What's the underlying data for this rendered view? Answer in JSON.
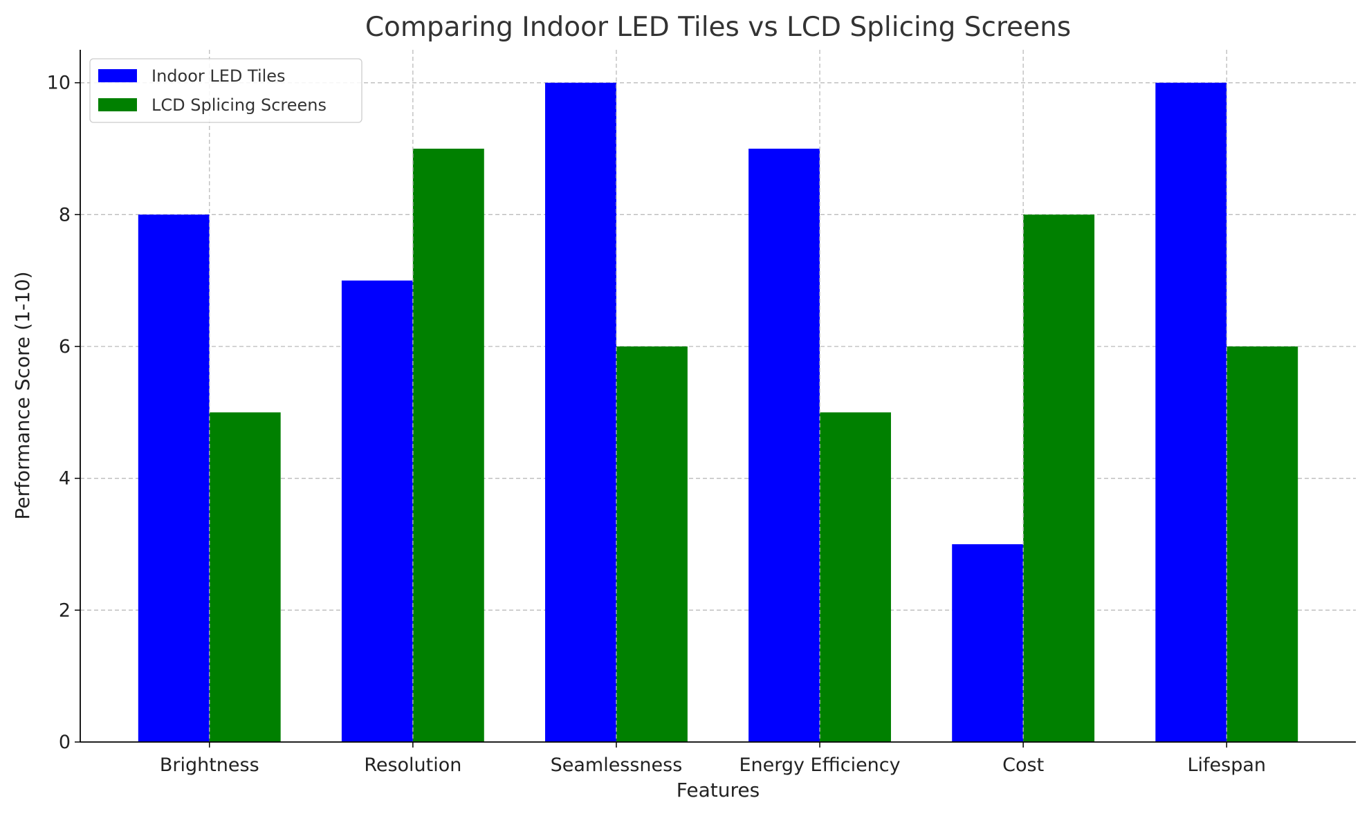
{
  "chart_data": {
    "type": "bar",
    "title": "Comparing Indoor LED Tiles vs LCD Splicing Screens",
    "xlabel": "Features",
    "ylabel": "Performance Score (1-10)",
    "categories": [
      "Brightness",
      "Resolution",
      "Seamlessness",
      "Energy Efficiency",
      "Cost",
      "Lifespan"
    ],
    "series": [
      {
        "name": "Indoor LED Tiles",
        "values": [
          8,
          7,
          10,
          9,
          3,
          10
        ],
        "color": "#0000ff"
      },
      {
        "name": "LCD Splicing Screens",
        "values": [
          5,
          9,
          6,
          5,
          8,
          6
        ],
        "color": "#008000"
      }
    ],
    "ylim": [
      0,
      10.5
    ],
    "yticks": [
      0,
      2,
      4,
      6,
      8,
      10
    ],
    "grid": true,
    "legend": "top-left"
  }
}
